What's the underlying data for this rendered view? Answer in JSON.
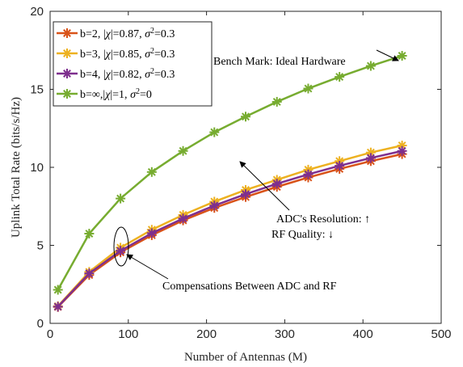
{
  "chart_data": {
    "type": "line",
    "xlabel": "Number of Antennas (M)",
    "ylabel": "Uplink Total Rate (bits/s/Hz)",
    "xlim": [
      0,
      500
    ],
    "ylim": [
      0,
      20
    ],
    "xticks": [
      "0",
      "100",
      "200",
      "300",
      "400",
      "500"
    ],
    "yticks": [
      "0",
      "5",
      "10",
      "15",
      "20"
    ],
    "grid": false,
    "legend_position": "top-left",
    "x": [
      10,
      50,
      90,
      130,
      170,
      210,
      250,
      290,
      330,
      370,
      410,
      450
    ],
    "series": [
      {
        "name": "b=2, |χ|=0.87, σ²=0.3",
        "name_parts": {
          "main": "b=2, |",
          "chi": "χ",
          "mid": "|=0.87, ",
          "sigma": "σ",
          "sup": "2",
          "tail": "=0.3"
        },
        "color": "#d95319",
        "values": [
          1.05,
          3.1,
          4.55,
          5.65,
          6.6,
          7.4,
          8.1,
          8.75,
          9.35,
          9.9,
          10.4,
          10.85
        ]
      },
      {
        "name": "b=3, |χ|=0.85, σ²=0.3",
        "name_parts": {
          "main": "b=3, |",
          "chi": "χ",
          "mid": "|=0.85, ",
          "sigma": "σ",
          "sup": "2",
          "tail": "=0.3"
        },
        "color": "#edb120",
        "values": [
          1.1,
          3.3,
          4.85,
          6.0,
          6.95,
          7.8,
          8.55,
          9.2,
          9.85,
          10.4,
          10.95,
          11.4
        ]
      },
      {
        "name": "b=4, |χ|=0.82, σ²=0.3",
        "name_parts": {
          "main": "b=4, |",
          "chi": "χ",
          "mid": "|=0.82, ",
          "sigma": "σ",
          "sup": "2",
          "tail": "=0.3"
        },
        "color": "#7e2f8e",
        "values": [
          1.07,
          3.2,
          4.65,
          5.78,
          6.72,
          7.55,
          8.28,
          8.95,
          9.55,
          10.1,
          10.6,
          11.05
        ]
      },
      {
        "name": "b=∞,|χ|=1,    σ²=0",
        "name_parts": {
          "main": "b=∞,|",
          "chi": "χ",
          "mid": "|=1,    ",
          "sigma": "σ",
          "sup": "2",
          "tail": "=0"
        },
        "color": "#77ac30",
        "values": [
          2.15,
          5.75,
          8.0,
          9.7,
          11.05,
          12.25,
          13.25,
          14.2,
          15.05,
          15.8,
          16.5,
          17.15
        ]
      }
    ],
    "annotations": {
      "benchmark": "Bench Mark: Ideal Hardware",
      "adc_resolution": "ADC's Resolution: ↑",
      "rf_quality": "RF Quality: ↓",
      "compensation": "Compensations Between ADC and RF"
    }
  }
}
